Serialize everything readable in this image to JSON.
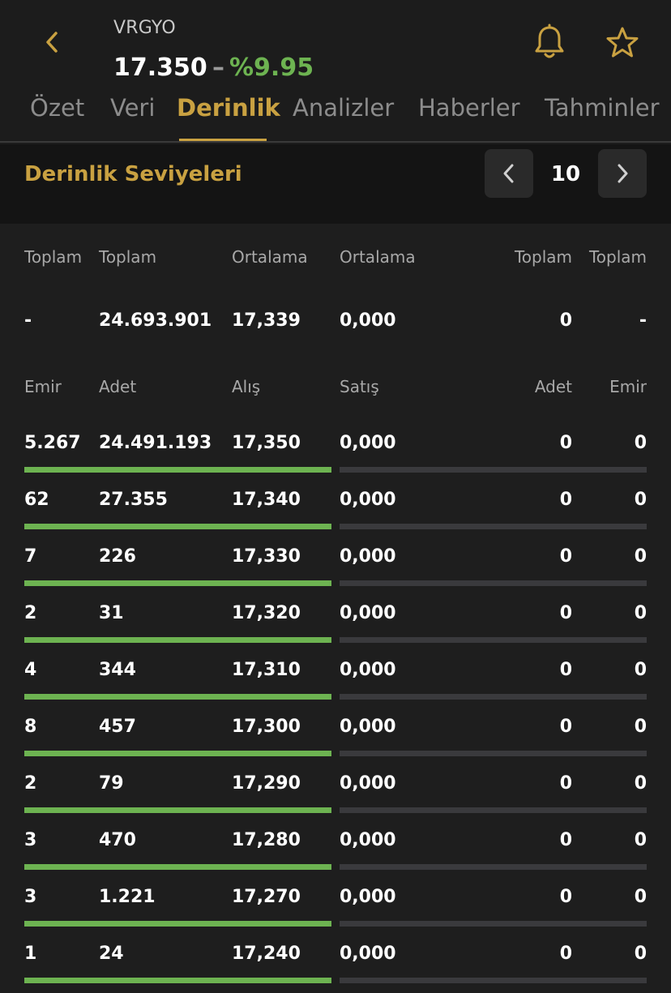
{
  "header": {
    "symbol": "VRGYO",
    "price": "17.350",
    "change_dash": "–",
    "change_pct": "%9.95"
  },
  "tabs": [
    {
      "label": "Özet",
      "active": false
    },
    {
      "label": "Veri",
      "active": false
    },
    {
      "label": "Derinlik",
      "active": true
    },
    {
      "label": "Analizler",
      "active": false
    },
    {
      "label": "Haberler",
      "active": false
    },
    {
      "label": "Tahminler",
      "active": false
    }
  ],
  "section": {
    "title": "Derinlik Seviyeleri",
    "levels": "10"
  },
  "summary": {
    "headers": [
      "Toplam",
      "Toplam",
      "Ortalama",
      "Ortalama",
      "Toplam",
      "Toplam"
    ],
    "values": [
      "-",
      "24.693.901",
      "17,339",
      "0,000",
      "0",
      "-"
    ]
  },
  "columns": [
    "Emir",
    "Adet",
    "Alış",
    "Satış",
    "Adet",
    "Emir"
  ],
  "rows": [
    {
      "bid_orders": "5.267",
      "bid_qty": "24.491.193",
      "bid_price": "17,350",
      "ask_price": "0,000",
      "ask_qty": "0",
      "ask_orders": "0"
    },
    {
      "bid_orders": "62",
      "bid_qty": "27.355",
      "bid_price": "17,340",
      "ask_price": "0,000",
      "ask_qty": "0",
      "ask_orders": "0"
    },
    {
      "bid_orders": "7",
      "bid_qty": "226",
      "bid_price": "17,330",
      "ask_price": "0,000",
      "ask_qty": "0",
      "ask_orders": "0"
    },
    {
      "bid_orders": "2",
      "bid_qty": "31",
      "bid_price": "17,320",
      "ask_price": "0,000",
      "ask_qty": "0",
      "ask_orders": "0"
    },
    {
      "bid_orders": "4",
      "bid_qty": "344",
      "bid_price": "17,310",
      "ask_price": "0,000",
      "ask_qty": "0",
      "ask_orders": "0"
    },
    {
      "bid_orders": "8",
      "bid_qty": "457",
      "bid_price": "17,300",
      "ask_price": "0,000",
      "ask_qty": "0",
      "ask_orders": "0"
    },
    {
      "bid_orders": "2",
      "bid_qty": "79",
      "bid_price": "17,290",
      "ask_price": "0,000",
      "ask_qty": "0",
      "ask_orders": "0"
    },
    {
      "bid_orders": "3",
      "bid_qty": "470",
      "bid_price": "17,280",
      "ask_price": "0,000",
      "ask_qty": "0",
      "ask_orders": "0"
    },
    {
      "bid_orders": "3",
      "bid_qty": "1.221",
      "bid_price": "17,270",
      "ask_price": "0,000",
      "ask_qty": "0",
      "ask_orders": "0"
    },
    {
      "bid_orders": "1",
      "bid_qty": "24",
      "bid_price": "17,240",
      "ask_price": "0,000",
      "ask_qty": "0",
      "ask_orders": "0"
    }
  ],
  "colors": {
    "accent": "#c9a141",
    "positive": "#6db351",
    "bid_bar": "#6db351",
    "ask_bar": "#3a3a3d"
  },
  "icons": {
    "back": "chevron-left-icon",
    "bell": "bell-icon",
    "star": "star-icon",
    "prev": "chevron-left-icon",
    "next": "chevron-right-icon"
  }
}
